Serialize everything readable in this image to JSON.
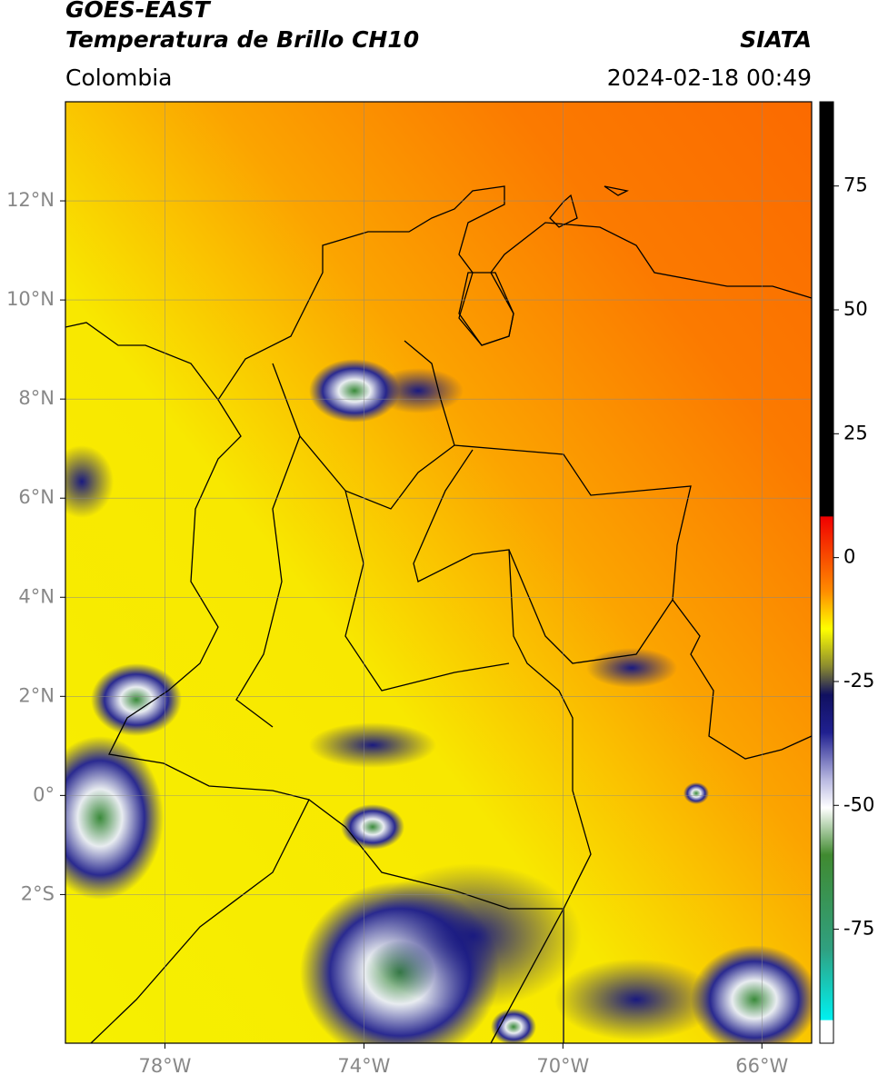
{
  "header": {
    "title": "GOES-EAST",
    "subtitle": "Temperatura de Brillo CH10",
    "region": "Colombia",
    "source": "SIATA",
    "datetime": "2024-02-18 00:49"
  },
  "map": {
    "lonlim": [
      -80,
      -65
    ],
    "latlim": [
      -5,
      14
    ],
    "grid": true,
    "lonticks": [
      {
        "value": -78,
        "label": "78°W"
      },
      {
        "value": -74,
        "label": "74°W"
      },
      {
        "value": -70,
        "label": "70°W"
      },
      {
        "value": -66,
        "label": "66°W"
      }
    ],
    "latticks": [
      {
        "value": 12,
        "label": "12°N"
      },
      {
        "value": 10,
        "label": "10°N"
      },
      {
        "value": 8,
        "label": "8°N"
      },
      {
        "value": 6,
        "label": "6°N"
      },
      {
        "value": 4,
        "label": "4°N"
      },
      {
        "value": 2,
        "label": "2°N"
      },
      {
        "value": 0,
        "label": "0°"
      },
      {
        "value": -2,
        "label": "2°S"
      }
    ],
    "colorbar": {
      "lim": [
        -98,
        92
      ],
      "ticks": [
        75,
        50,
        25,
        0,
        -25,
        -50,
        -75
      ]
    }
  }
}
